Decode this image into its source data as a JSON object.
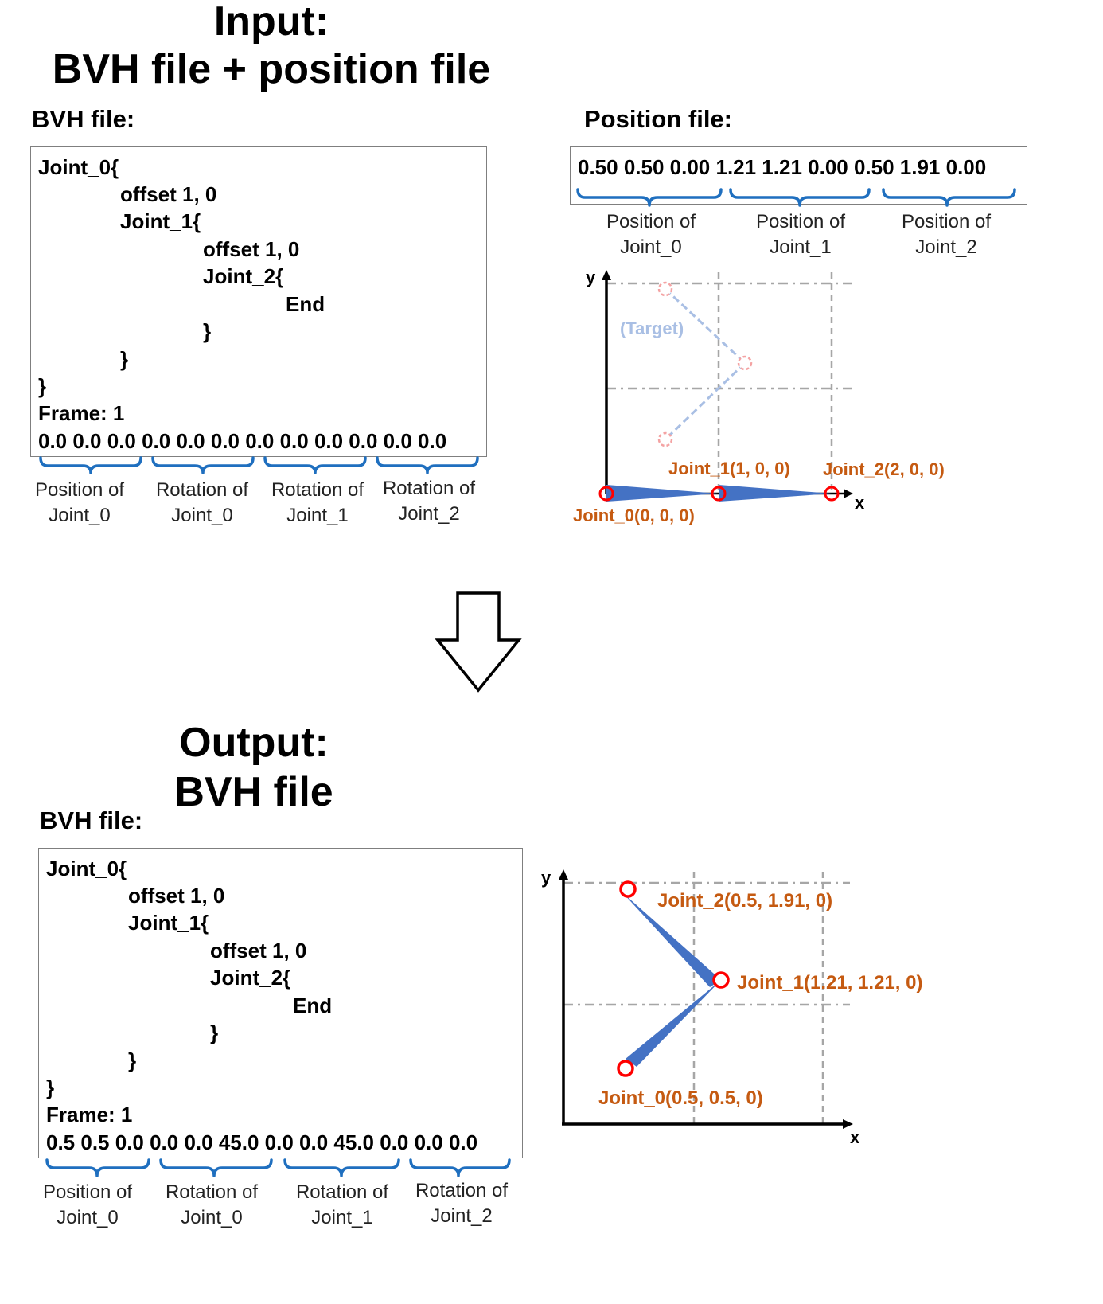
{
  "input_section": {
    "title_line1": "Input:",
    "title_line2": "BVH file + position file",
    "bvh_heading": "BVH file:",
    "position_heading": "Position file:"
  },
  "bvh_in": {
    "lines": [
      "Joint_0{",
      "offset 1, 0",
      "Joint_1{",
      "offset 1, 0",
      "Joint_2{",
      "End",
      "}",
      "}",
      "}",
      "Frame: 1"
    ],
    "values": "0.0 0.0 0.0 0.0 0.0 0.0 0.0 0.0 0.0 0.0 0.0 0.0",
    "captions": [
      {
        "line1": "Position of",
        "line2": "Joint_0"
      },
      {
        "line1": "Rotation of",
        "line2": "Joint_0"
      },
      {
        "line1": "Rotation of",
        "line2": "Joint_1"
      },
      {
        "line1": "Rotation of",
        "line2": "Joint_2"
      }
    ]
  },
  "position_file": {
    "values": "0.50 0.50 0.00 1.21 1.21 0.00 0.50 1.91 0.00",
    "captions": [
      {
        "line1": "Position of",
        "line2": "Joint_0"
      },
      {
        "line1": "Position of",
        "line2": "Joint_1"
      },
      {
        "line1": "Position of",
        "line2": "Joint_2"
      }
    ]
  },
  "plot_in": {
    "y_axis": "y",
    "x_axis": "x",
    "target_label": "(Target)",
    "joint_labels": [
      "Joint_0(0, 0, 0)",
      "Joint_1(1, 0, 0)",
      "Joint_2(2, 0, 0)"
    ],
    "colors": {
      "joint_circle": "#ff0000",
      "bone": "#4472c4",
      "target": "#a9bfe4",
      "label": "#c55a11"
    }
  },
  "output_section": {
    "title_line1": "Output:",
    "title_line2": "BVH file",
    "bvh_heading": "BVH file:"
  },
  "bvh_out": {
    "lines": [
      "Joint_0{",
      "offset 1, 0",
      "Joint_1{",
      "offset 1, 0",
      "Joint_2{",
      "End",
      "}",
      "}",
      "}",
      "Frame: 1"
    ],
    "values": "0.5 0.5 0.0 0.0 0.0 45.0 0.0 0.0 45.0 0.0 0.0 0.0",
    "captions": [
      {
        "line1": "Position of",
        "line2": "Joint_0"
      },
      {
        "line1": "Rotation of",
        "line2": "Joint_0"
      },
      {
        "line1": "Rotation of",
        "line2": "Joint_1"
      },
      {
        "line1": "Rotation of",
        "line2": "Joint_2"
      }
    ]
  },
  "plot_out": {
    "y_axis": "y",
    "x_axis": "x",
    "joint_labels": [
      "Joint_0(0.5, 0.5, 0)",
      "Joint_1(1.21, 1.21, 0)",
      "Joint_2(0.5, 1.91, 0)"
    ]
  }
}
